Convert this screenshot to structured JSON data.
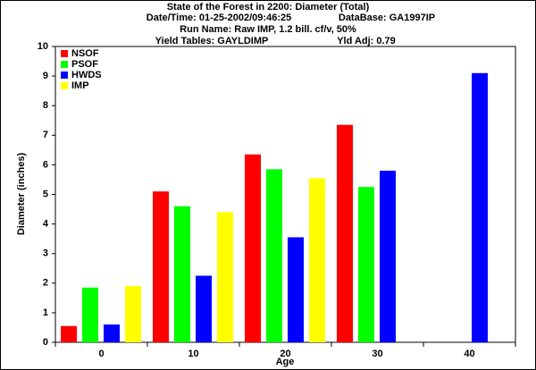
{
  "chart_data": {
    "type": "bar",
    "title": "State of the Forest in 2200: Diameter (Total)",
    "subtitles": [
      [
        "Date/Time: 01-25-2002/09:46:25",
        "DataBase: GA1997IP"
      ],
      [
        "Run Name: Raw IMP, 1.2 bill. cf/v, 50%"
      ],
      [
        "Yield Tables: GAYLDIMP",
        "Yld Adj: 0.79"
      ]
    ],
    "x_label": "Age",
    "y_label": "Diameter (inches)",
    "categories": [
      "0",
      "10",
      "20",
      "30",
      "40"
    ],
    "series": [
      {
        "name": "NSOF",
        "color": "#ff0000",
        "values": [
          0.55,
          5.1,
          6.35,
          7.35,
          null
        ]
      },
      {
        "name": "PSOF",
        "color": "#00ff00",
        "values": [
          1.85,
          4.6,
          5.85,
          5.25,
          null
        ]
      },
      {
        "name": "HWDS",
        "color": "#0000ff",
        "values": [
          0.6,
          2.25,
          3.55,
          5.8,
          9.1
        ]
      },
      {
        "name": "IMP",
        "color": "#ffff00",
        "values": [
          1.9,
          4.4,
          5.55,
          null,
          null
        ]
      }
    ],
    "ylim": [
      0,
      10
    ],
    "yticks": [
      0,
      1,
      2,
      3,
      4,
      5,
      6,
      7,
      8,
      9,
      10
    ],
    "legend": "top-left"
  }
}
